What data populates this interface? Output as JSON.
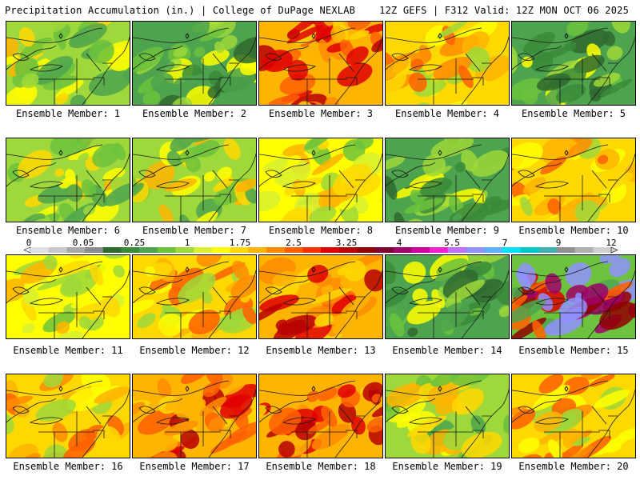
{
  "header": {
    "title": "Precipitation Accumulation (in.) | College of DuPage NEXLAB",
    "run_info": "12Z GEFS | F312 Valid: 12Z MON OCT 06 2025"
  },
  "colorbar": {
    "labels": [
      "0",
      "0.05",
      "0.25",
      "1",
      "1.75",
      "2.5",
      "3.25",
      "4",
      "5.5",
      "7",
      "9",
      "12"
    ],
    "colors": [
      "#e0e0e0",
      "#c8c8c8",
      "#a8a8a8",
      "#8c8c8c",
      "#2f6a2f",
      "#3a8a3a",
      "#4ea44e",
      "#6cc23c",
      "#9ed83a",
      "#d8f030",
      "#ffff00",
      "#ffd800",
      "#ffb400",
      "#ff8c00",
      "#ff6000",
      "#ff3000",
      "#e00000",
      "#b80000",
      "#900000",
      "#7a0030",
      "#a0006a",
      "#d000a0",
      "#f020d0",
      "#c070ff",
      "#9090ff",
      "#60b0ff",
      "#00e0ff",
      "#00c8c8",
      "#40b0b0",
      "#909090",
      "#b0b0b0",
      "#d0d0d0"
    ]
  },
  "panels": [
    {
      "caption": "Ensemble Member: 1",
      "tint": "mixed"
    },
    {
      "caption": "Ensemble Member: 2",
      "tint": "green"
    },
    {
      "caption": "Ensemble Member: 3",
      "tint": "red"
    },
    {
      "caption": "Ensemble Member: 4",
      "tint": "orange"
    },
    {
      "caption": "Ensemble Member: 5",
      "tint": "green"
    },
    {
      "caption": "Ensemble Member: 6",
      "tint": "mixed"
    },
    {
      "caption": "Ensemble Member: 7",
      "tint": "mixed"
    },
    {
      "caption": "Ensemble Member: 8",
      "tint": "yellow"
    },
    {
      "caption": "Ensemble Member: 9",
      "tint": "green"
    },
    {
      "caption": "Ensemble Member: 10",
      "tint": "orange"
    },
    {
      "caption": "Ensemble Member: 11",
      "tint": "yellow"
    },
    {
      "caption": "Ensemble Member: 12",
      "tint": "orange"
    },
    {
      "caption": "Ensemble Member: 13",
      "tint": "red"
    },
    {
      "caption": "Ensemble Member: 14",
      "tint": "green"
    },
    {
      "caption": "Ensemble Member: 15",
      "tint": "heavy"
    },
    {
      "caption": "Ensemble Member: 16",
      "tint": "orange"
    },
    {
      "caption": "Ensemble Member: 17",
      "tint": "red"
    },
    {
      "caption": "Ensemble Member: 18",
      "tint": "red"
    },
    {
      "caption": "Ensemble Member: 19",
      "tint": "mixed"
    },
    {
      "caption": "Ensemble Member: 20",
      "tint": "orange"
    }
  ]
}
